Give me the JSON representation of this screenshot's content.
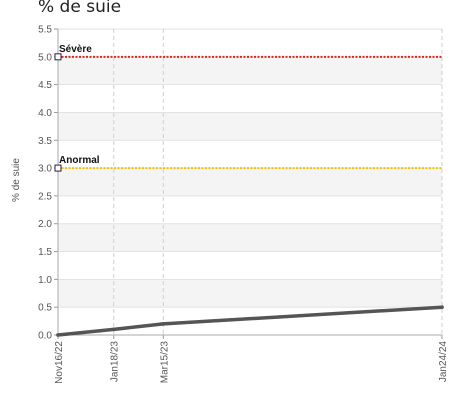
{
  "chart_data": {
    "type": "line",
    "title": "% de suie",
    "ylabel": "% de suie",
    "xlabel": "",
    "ylim": [
      0,
      5.5
    ],
    "yticks": [
      "0.0",
      "0.5",
      "1.0",
      "1.5",
      "2.0",
      "2.5",
      "3.0",
      "3.5",
      "4.0",
      "4.5",
      "5.0",
      "5.5"
    ],
    "xticks": [
      "Nov16/22",
      "Jan18/23",
      "Mar15/23",
      "Jan24/24"
    ],
    "grid": true,
    "series": [
      {
        "values": [
          {
            "x": "Nov16/22",
            "y": 0.0
          },
          {
            "x": "Jan18/23",
            "y": 0.1
          },
          {
            "x": "Mar15/23",
            "y": 0.2
          },
          {
            "x": "Jan24/24",
            "y": 0.5
          }
        ],
        "color": "#555555"
      }
    ],
    "thresholds": [
      {
        "label": "Sévère",
        "value": 5.0,
        "color": "#e8211a"
      },
      {
        "label": "Anormal",
        "value": 3.0,
        "color": "#f2c200"
      }
    ]
  }
}
